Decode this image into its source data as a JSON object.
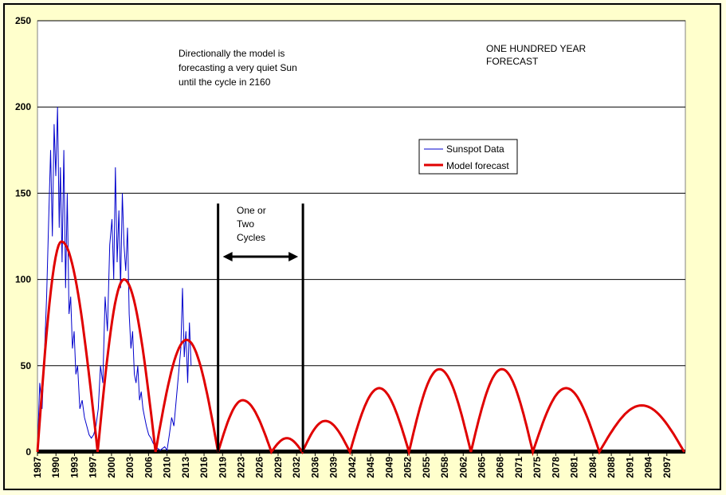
{
  "chart_data": {
    "type": "line",
    "title": "",
    "xlabel": "",
    "ylabel": "",
    "ylim": [
      0,
      250
    ],
    "yticks": [
      0,
      50,
      100,
      150,
      200,
      250
    ],
    "xlim": [
      1987,
      2100
    ],
    "xticks": [
      "1987",
      "1990",
      "1993",
      "1997",
      "2000",
      "2003",
      "2006",
      "2010",
      "2013",
      "2016",
      "2019",
      "2023",
      "2026",
      "2029",
      "2032",
      "2036",
      "2039",
      "2042",
      "2045",
      "2049",
      "2052",
      "2055",
      "2058",
      "2062",
      "2065",
      "2068",
      "2071",
      "2075",
      "2078",
      "2081",
      "2084",
      "2088",
      "2091",
      "2094",
      "2097"
    ],
    "grid": true,
    "legend": {
      "placement": "upper-center-right",
      "entries": [
        "Sunspot Data",
        "Model forecast"
      ]
    },
    "colors": {
      "sunspot": "#0000cc",
      "model": "#e00000",
      "plot_bg": "#ffffff",
      "frame_bg": "#ffffcc"
    },
    "series": [
      {
        "name": "Sunspot Data",
        "x": [
          1987.0,
          1987.4,
          1987.8,
          1988.2,
          1988.6,
          1989.0,
          1989.3,
          1989.6,
          1989.9,
          1990.2,
          1990.5,
          1990.8,
          1991.0,
          1991.3,
          1991.6,
          1991.9,
          1992.2,
          1992.5,
          1992.8,
          1993.1,
          1993.4,
          1993.7,
          1994.0,
          1994.4,
          1994.8,
          1995.2,
          1995.6,
          1996.0,
          1996.4,
          1996.8,
          1997.2,
          1997.6,
          1998.0,
          1998.4,
          1998.8,
          1999.2,
          1999.6,
          2000.0,
          2000.3,
          2000.6,
          2000.9,
          2001.2,
          2001.5,
          2001.8,
          2002.1,
          2002.4,
          2002.7,
          2003.0,
          2003.3,
          2003.6,
          2003.9,
          2004.2,
          2004.5,
          2004.8,
          2005.1,
          2005.4,
          2005.7,
          2006.0,
          2006.4,
          2006.8,
          2007.2,
          2007.6,
          2008.0,
          2008.4,
          2008.8,
          2009.2,
          2009.6,
          2010.0,
          2010.4,
          2010.8,
          2011.2,
          2011.6,
          2012.0,
          2012.3,
          2012.6,
          2012.9,
          2013.2,
          2013.5,
          2013.8
        ],
        "y": [
          2,
          40,
          25,
          55,
          90,
          140,
          175,
          125,
          190,
          160,
          200,
          130,
          165,
          110,
          175,
          95,
          150,
          80,
          90,
          60,
          70,
          45,
          50,
          25,
          30,
          20,
          15,
          10,
          8,
          10,
          15,
          25,
          50,
          40,
          90,
          70,
          120,
          135,
          100,
          165,
          110,
          140,
          95,
          150,
          120,
          105,
          130,
          80,
          60,
          70,
          45,
          40,
          50,
          30,
          35,
          25,
          20,
          15,
          10,
          8,
          5,
          3,
          2,
          1,
          2,
          3,
          1,
          10,
          20,
          15,
          30,
          45,
          60,
          95,
          55,
          70,
          40,
          75,
          50
        ]
      },
      {
        "name": "Model forecast",
        "peaks": [
          {
            "start": 1987.0,
            "end": 1997.5,
            "peak": 122,
            "peak_at": 1991.2
          },
          {
            "start": 1997.5,
            "end": 2007.6,
            "peak": 100,
            "peak_at": 2002.1
          },
          {
            "start": 2007.6,
            "end": 2018.5,
            "peak": 65,
            "peak_at": 2013.0
          },
          {
            "start": 2018.5,
            "end": 2027.8,
            "peak": 30,
            "peak_at": 2022.8
          },
          {
            "start": 2027.8,
            "end": 2033.2,
            "peak": 8,
            "peak_at": 2030.5
          },
          {
            "start": 2033.2,
            "end": 2041.5,
            "peak": 18,
            "peak_at": 2037.2
          },
          {
            "start": 2041.5,
            "end": 2051.8,
            "peak": 37,
            "peak_at": 2046.6
          },
          {
            "start": 2051.8,
            "end": 2062.6,
            "peak": 48,
            "peak_at": 2057.1
          },
          {
            "start": 2062.6,
            "end": 2073.4,
            "peak": 48,
            "peak_at": 2068.0
          },
          {
            "start": 2073.4,
            "end": 2085.0,
            "peak": 37,
            "peak_at": 2079.2
          },
          {
            "start": 2085.0,
            "end": 2099.8,
            "peak": 27,
            "peak_at": 2092.4
          }
        ]
      }
    ],
    "annotations": {
      "note_top": [
        "Directionally  the model is",
        "forecasting a very quiet Sun",
        "until the cycle in 2160"
      ],
      "title_block": [
        "ONE HUNDRED YEAR",
        "FORECAST"
      ],
      "range_label": [
        "One or",
        "Two",
        "Cycles"
      ],
      "range_start_year": 2018.5,
      "range_end_year": 2033.3,
      "range_top_value": 144
    }
  }
}
